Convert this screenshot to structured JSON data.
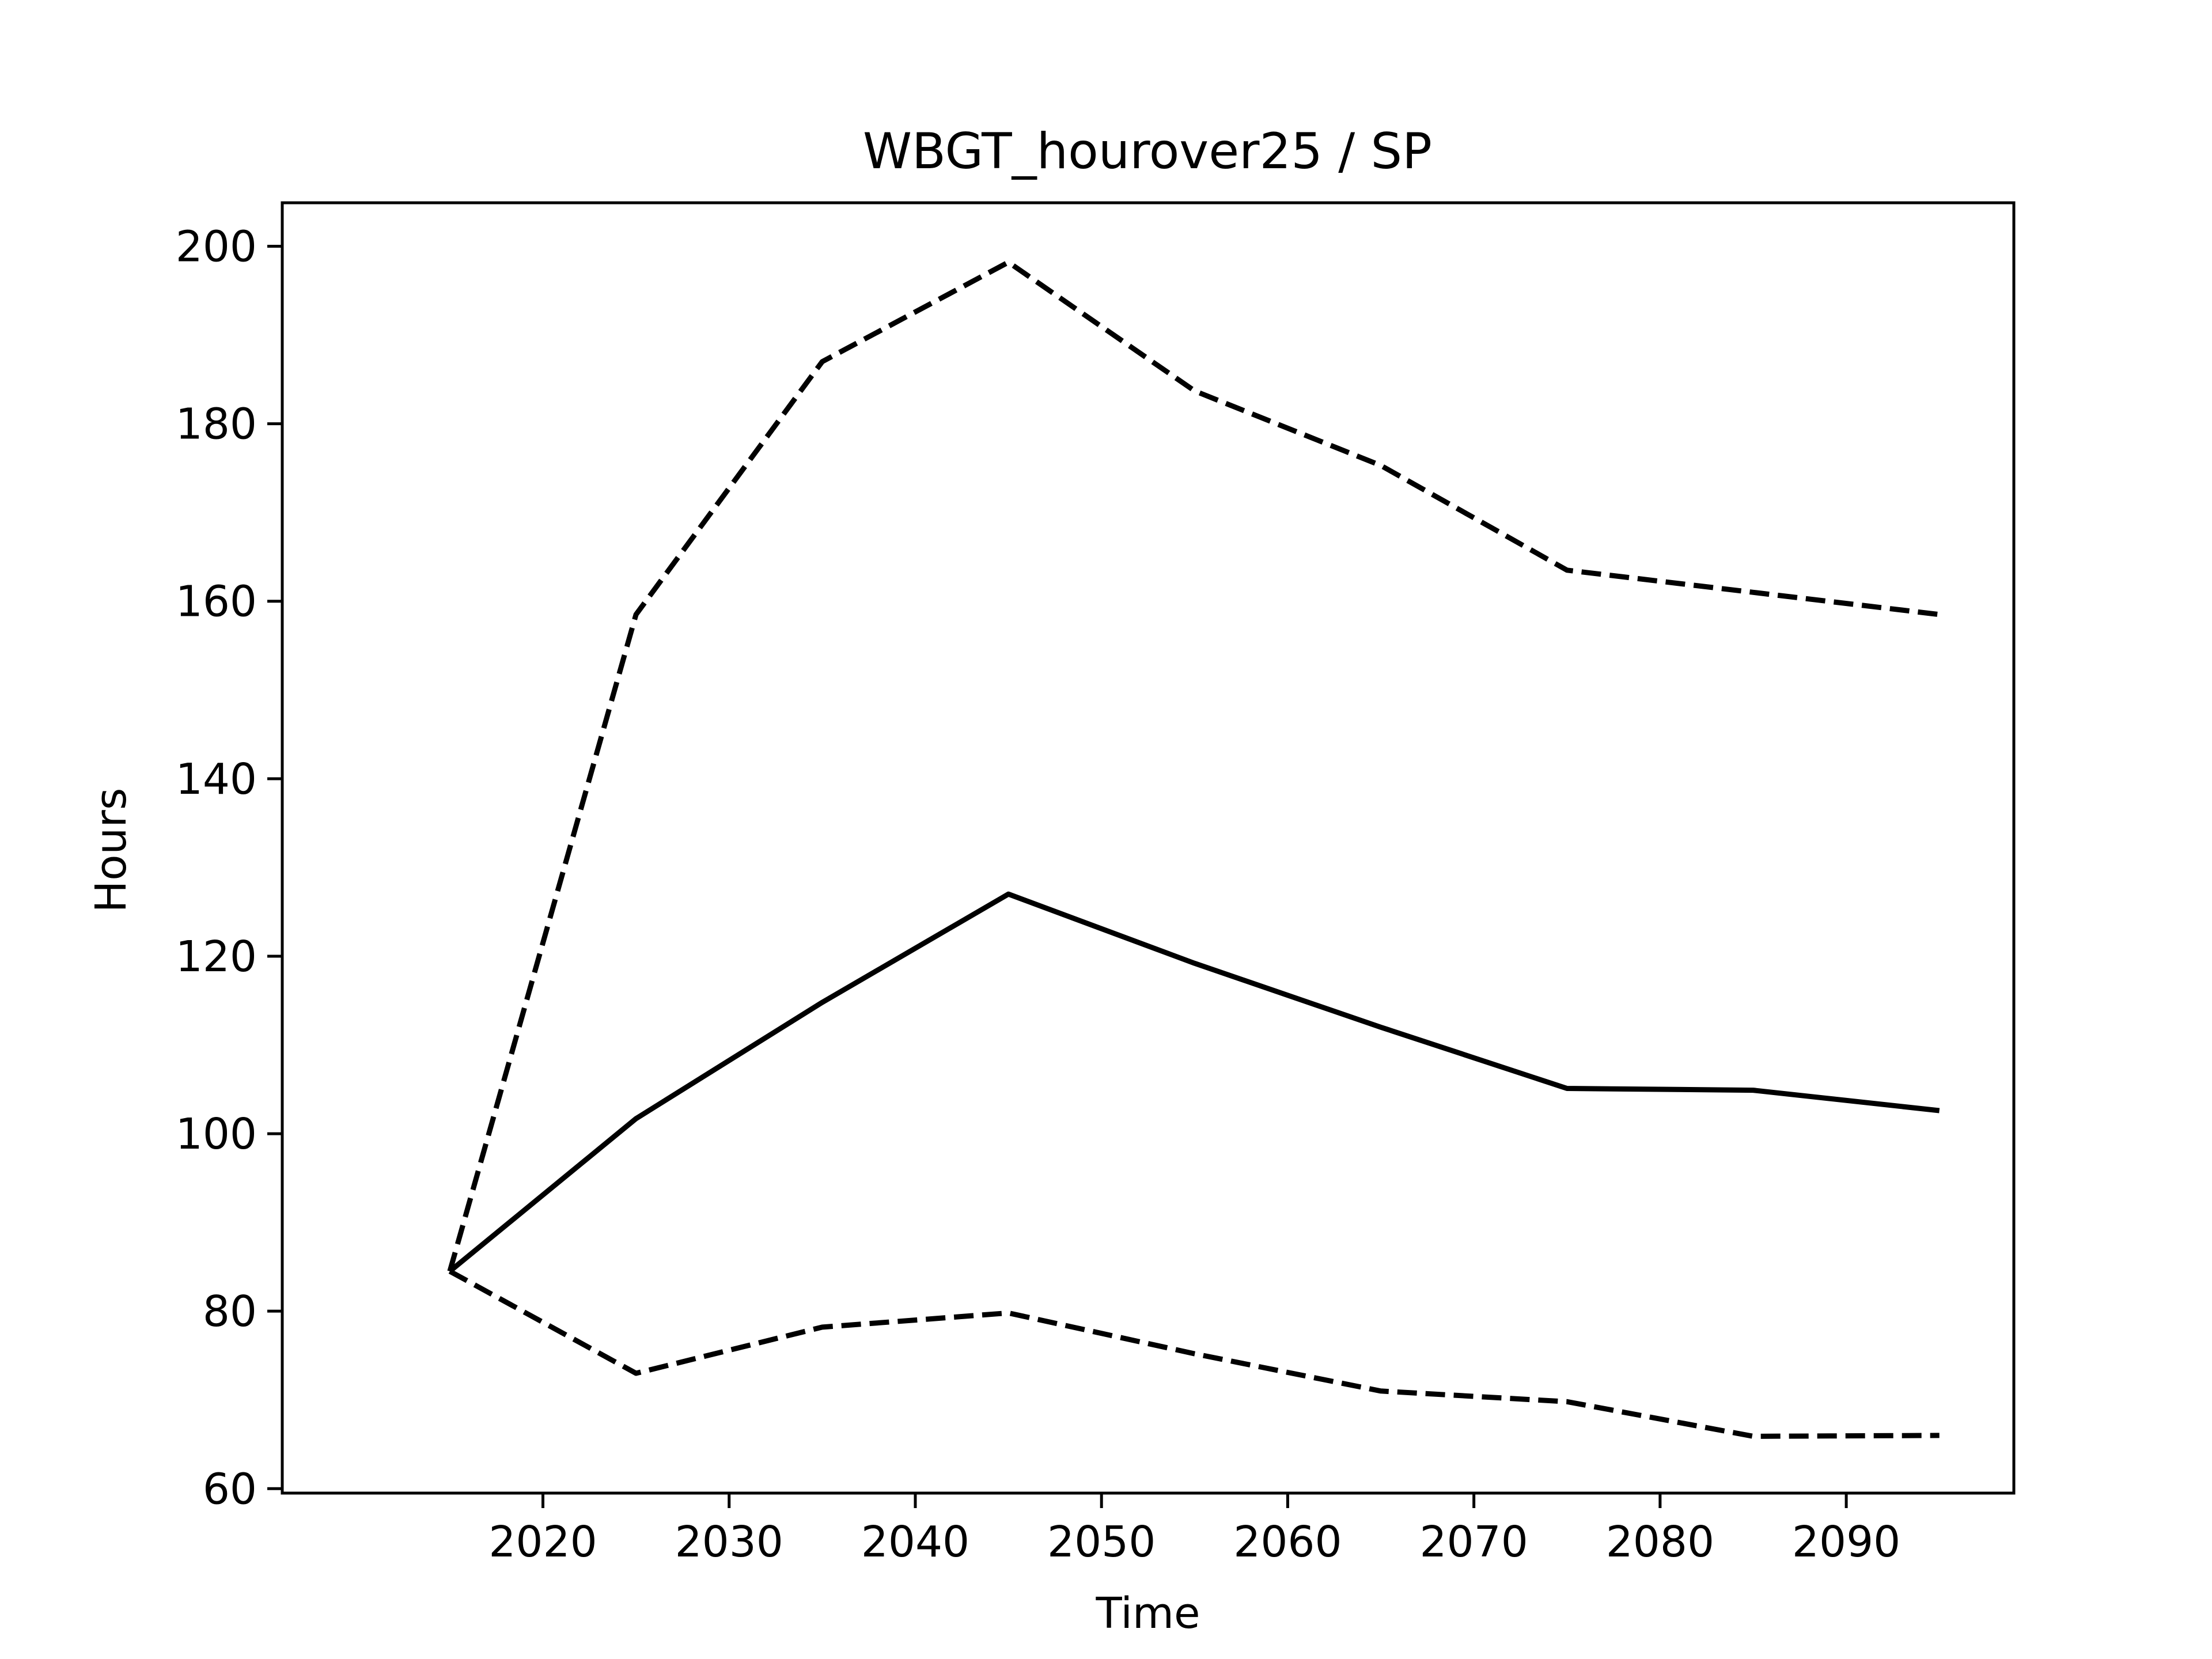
{
  "chart_data": {
    "type": "line",
    "title": "WBGT_hourover25 / SP",
    "xlabel": "Time",
    "ylabel": "Hours",
    "x": [
      2015,
      2025,
      2035,
      2045,
      2055,
      2065,
      2075,
      2085,
      2095
    ],
    "xticks": [
      2020,
      2030,
      2040,
      2050,
      2060,
      2070,
      2080,
      2090
    ],
    "yticks": [
      60,
      80,
      100,
      120,
      140,
      160,
      180,
      200
    ],
    "xlim": [
      2006,
      2099
    ],
    "ylim": [
      59.5,
      204.9
    ],
    "grid": false,
    "legend": "none",
    "series": [
      {
        "style": "dashed",
        "color": "#000000",
        "values": [
          84.5,
          158.5,
          187.0,
          198.2,
          183.7,
          175.3,
          163.5,
          161.0,
          158.5
        ]
      },
      {
        "style": "solid",
        "color": "#000000",
        "values": [
          84.5,
          101.7,
          114.8,
          127.0,
          119.2,
          112.0,
          105.1,
          104.9,
          102.6
        ]
      },
      {
        "style": "dashed",
        "color": "#000000",
        "values": [
          84.5,
          73.0,
          78.2,
          79.8,
          75.2,
          71.0,
          69.8,
          65.9,
          66.0
        ]
      }
    ]
  }
}
